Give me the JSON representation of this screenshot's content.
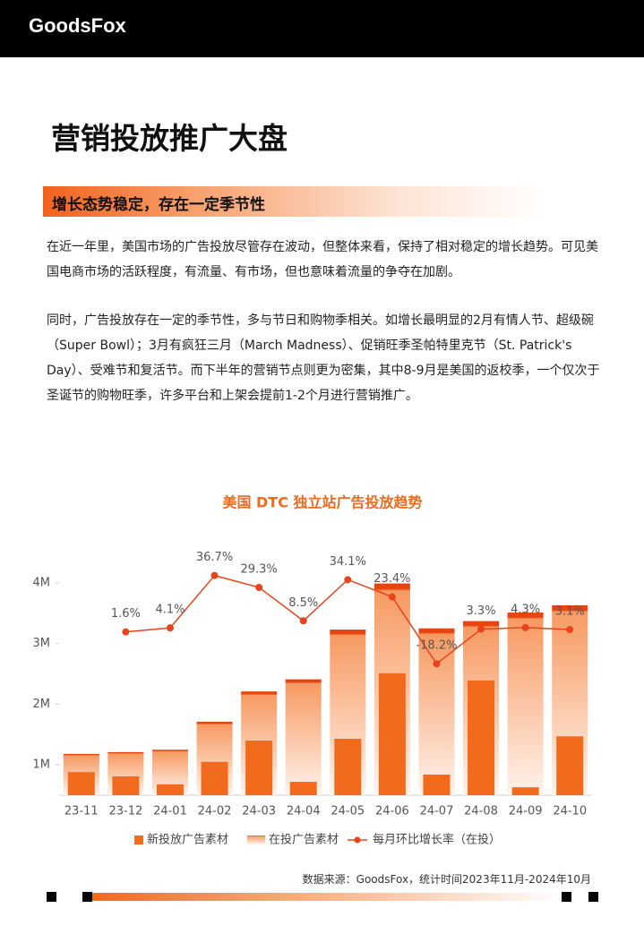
{
  "header": {
    "logo": "GoodsFox"
  },
  "title": "营销投放推广大盘",
  "section_heading": "增长态势稳定，存在一定季节性",
  "paragraphs": [
    "在近一年里，美国市场的广告投放尽管存在波动，但整体来看，保持了相对稳定的增长趋势。可见美国电商市场的活跃程度，有流量、有市场，但也意味着流量的争夺在加剧。",
    "同时，广告投放存在一定的季节性，多与节日和购物季相关。如增长最明显的2月有情人节、超级碗（Super Bowl）；3月有疯狂三月（March Madness）、促销旺季圣帕特里克节（St. Patrick's Day）、受难节和复活节。而下半年的营销节点则更为密集，其中8-9月是美国的返校季，一个仅次于圣诞节的购物旺季，许多平台和上架会提前1-2个月进行营销推广。"
  ],
  "chart_data": {
    "type": "bar",
    "title": "美国 DTC 独立站广告投放趋势",
    "categories": [
      "23-11",
      "23-12",
      "24-01",
      "24-02",
      "24-03",
      "24-04",
      "24-05",
      "24-06",
      "24-07",
      "24-08",
      "24-09",
      "24-10"
    ],
    "series": [
      {
        "name": "新投放广告素材",
        "type": "bar",
        "fill": "solid",
        "color": "#f26a1b",
        "values": [
          880000,
          810000,
          680000,
          1050000,
          1400000,
          720000,
          1430000,
          2510000,
          840000,
          2390000,
          630000,
          1470000
        ]
      },
      {
        "name": "在投广告素材",
        "type": "bar",
        "fill": "gradient",
        "color": "#f26a1b",
        "values": [
          1180000,
          1210000,
          1250000,
          1710000,
          2210000,
          2410000,
          3230000,
          3990000,
          3250000,
          3370000,
          3510000,
          3630000
        ]
      },
      {
        "name": "每月环比增长率（在投）",
        "type": "line",
        "axis": "y2",
        "color": "#e8431a",
        "values": [
          null,
          1.6,
          4.1,
          36.7,
          29.3,
          8.5,
          34.1,
          23.4,
          -18.2,
          3.3,
          4.3,
          3.1
        ],
        "value_labels": [
          null,
          "1.6%",
          "4.1%",
          "36.7%",
          "29.3%",
          "8.5%",
          "34.1%",
          "23.4%",
          "-18.2%",
          "3.3%",
          "4.3%",
          "3.1%"
        ]
      }
    ],
    "ylim": [
      500000,
      4500000
    ],
    "yticks": [
      {
        "value": 1000000,
        "label": "1M"
      },
      {
        "value": 2000000,
        "label": "2M"
      },
      {
        "value": 3000000,
        "label": "3M"
      },
      {
        "value": 4000000,
        "label": "4M"
      }
    ],
    "y2lim": [
      -100,
      51
    ],
    "grid": false
  },
  "source": "数据来源：GoodsFox，统计时间2023年11月-2024年10月"
}
